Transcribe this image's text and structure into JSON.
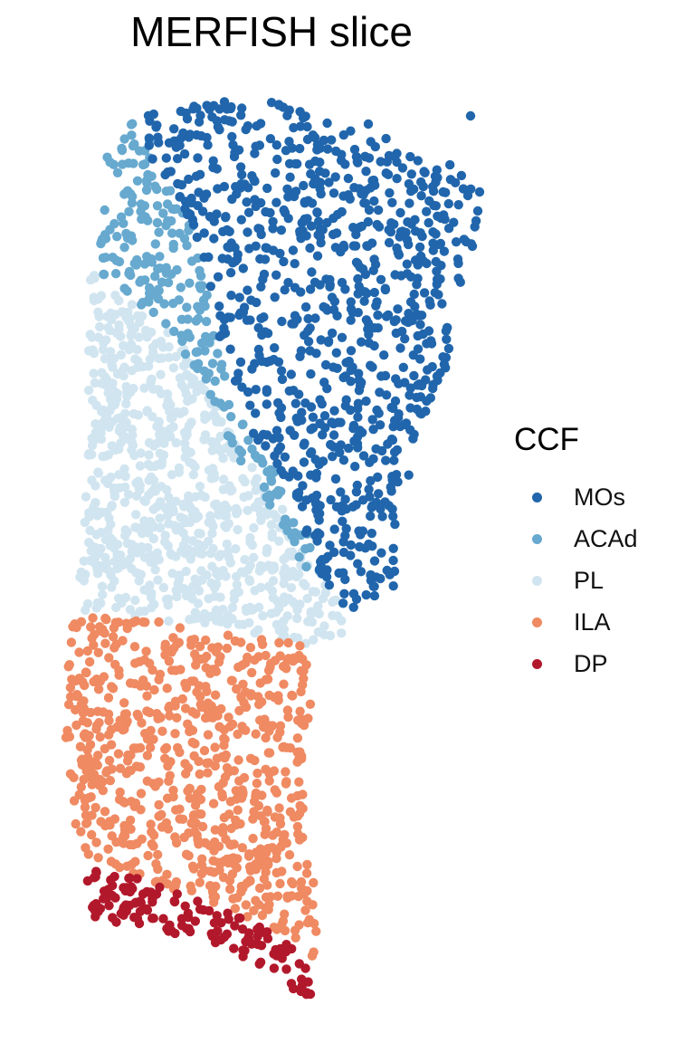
{
  "chart_data": {
    "type": "scatter",
    "title": "MERFISH slice",
    "xlabel": "",
    "ylabel": "",
    "grid": false,
    "legend": {
      "title": "CCF",
      "placement": "right",
      "entries": [
        {
          "name": "MOs",
          "color": "#2166ac"
        },
        {
          "name": "ACAd",
          "color": "#67a9cf"
        },
        {
          "name": "PL",
          "color": "#d1e5f0"
        },
        {
          "name": "ILA",
          "color": "#ef8a62"
        },
        {
          "name": "DP",
          "color": "#b2182b"
        }
      ]
    },
    "series_counts": {
      "MOs": 880,
      "ACAd": 230,
      "PL": 760,
      "ILA": 720,
      "DP": 150
    }
  }
}
